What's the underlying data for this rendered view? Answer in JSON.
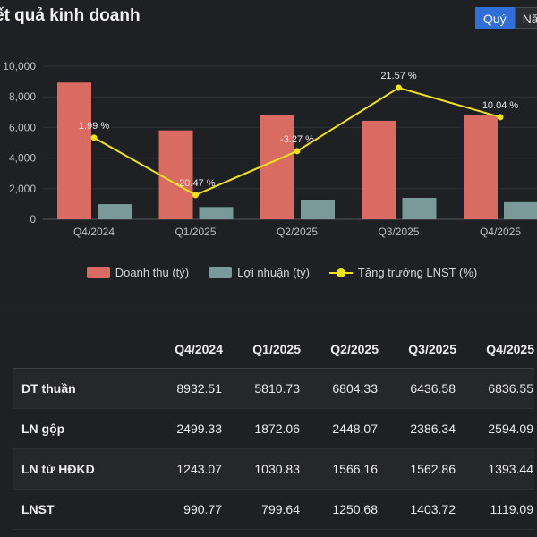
{
  "header": {
    "title": "ết quả kinh doanh",
    "toggle": {
      "quarter_label": "Quý",
      "year_label": "Nă"
    }
  },
  "chart_data": {
    "type": "bar",
    "categories": [
      "Q4/2024",
      "Q1/2025",
      "Q2/2025",
      "Q3/2025",
      "Q4/2025"
    ],
    "yticks": [
      "0",
      "2,000",
      "4,000",
      "6,000",
      "8,000",
      "10,000"
    ],
    "ylim": [
      0,
      10000
    ],
    "grid": true,
    "series": [
      {
        "name": "Doanh thu (tỷ)",
        "type": "bar",
        "color": "#d96b63",
        "values": [
          8932.51,
          5810.73,
          6804.33,
          6436.58,
          6836.55
        ]
      },
      {
        "name": "Lợi nhuận (tỷ)",
        "type": "bar",
        "color": "#7a9a9a",
        "values": [
          990.77,
          799.64,
          1250.68,
          1403.72,
          1119.09
        ]
      },
      {
        "name": "Tăng trưởng LNST (%)",
        "type": "line",
        "color": "#f2e21a",
        "values": [
          1.99,
          -20.47,
          -3.27,
          21.57,
          10.04
        ],
        "labels": [
          "1.99 %",
          "-20.47 %",
          "-3.27 %",
          "21.57 %",
          "10.04 %"
        ],
        "ylim": [
          -30,
          30
        ]
      }
    ],
    "legend_position": "bottom"
  },
  "table": {
    "columns": [
      "",
      "Q4/2024",
      "Q1/2025",
      "Q2/2025",
      "Q3/2025",
      "Q4/2025"
    ],
    "rows": [
      {
        "label": "DT thuần",
        "values": [
          "8932.51",
          "5810.73",
          "6804.33",
          "6436.58",
          "6836.55"
        ]
      },
      {
        "label": "LN gộp",
        "values": [
          "2499.33",
          "1872.06",
          "2448.07",
          "2386.34",
          "2594.09"
        ]
      },
      {
        "label": "LN từ HĐKD",
        "values": [
          "1243.07",
          "1030.83",
          "1566.16",
          "1562.86",
          "1393.44"
        ]
      },
      {
        "label": "LNST",
        "values": [
          "990.77",
          "799.64",
          "1250.68",
          "1403.72",
          "1119.09"
        ]
      }
    ]
  }
}
